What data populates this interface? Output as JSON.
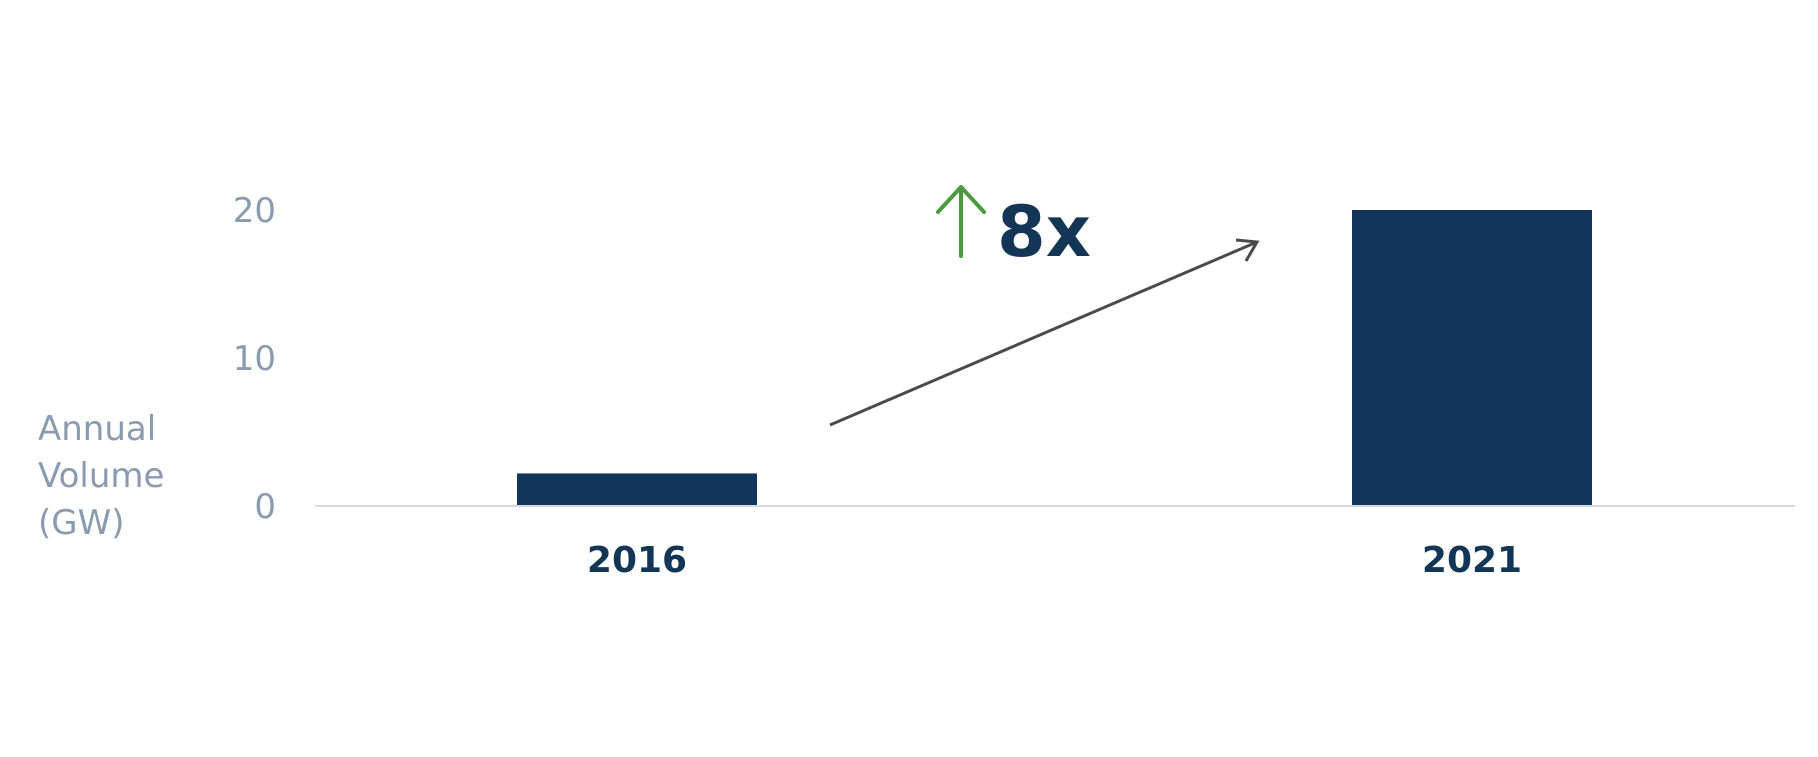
{
  "chart_data": {
    "type": "bar",
    "categories": [
      "2016",
      "2021"
    ],
    "values": [
      2.2,
      20
    ],
    "xlabel": "",
    "ylabel_lines": [
      "Annual",
      "Volume",
      "(GW)"
    ],
    "yticks": [
      0,
      10,
      20
    ],
    "ylim": [
      0,
      20
    ],
    "grid": false,
    "bar_color": "#12355b",
    "axis_color": "#d3dae2",
    "tick_color": "#8a9bb0",
    "category_label_color": "#143656",
    "annotation": {
      "text": "8x",
      "text_color": "#143656",
      "arrow_up_color": "#4a9a3f",
      "trend_arrow_color": "#4a4a4a",
      "arrow_icon": "arrow-up-icon"
    }
  }
}
